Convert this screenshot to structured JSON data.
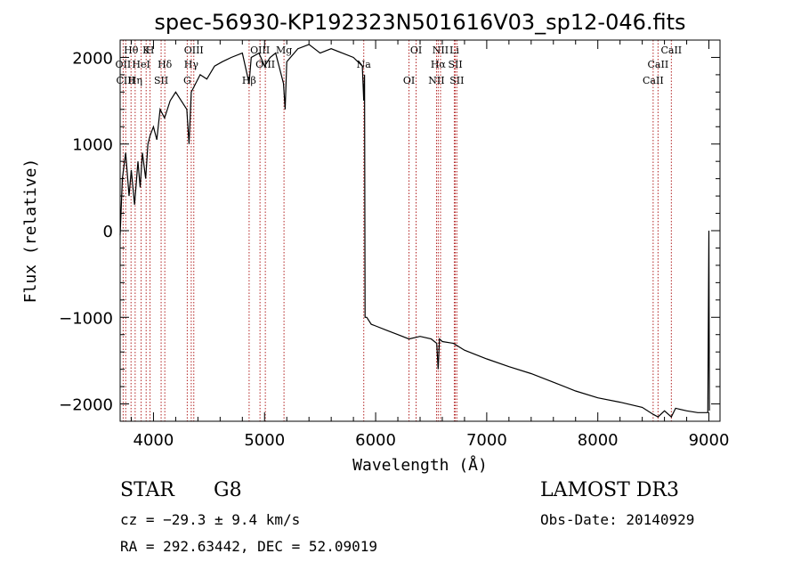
{
  "chart_data": {
    "type": "line",
    "title": "spec-56930-KP192323N501616V03_sp12-046.fits",
    "xlabel": "Wavelength (Å)",
    "ylabel": "Flux (relative)",
    "xlim": [
      3700,
      9100
    ],
    "ylim": [
      -2200,
      2200
    ],
    "xticks": [
      4000,
      5000,
      6000,
      7000,
      8000,
      9000
    ],
    "yticks": [
      -2000,
      -1000,
      0,
      1000,
      2000
    ],
    "grid": false,
    "series": [
      {
        "name": "flux",
        "x": [
          3700,
          3720,
          3750,
          3780,
          3800,
          3830,
          3860,
          3880,
          3900,
          3930,
          3950,
          3970,
          4000,
          4030,
          4060,
          4100,
          4150,
          4200,
          4250,
          4300,
          4320,
          4340,
          4380,
          4420,
          4480,
          4550,
          4620,
          4700,
          4800,
          4861,
          4880,
          4950,
          5000,
          5050,
          5100,
          5170,
          5185,
          5200,
          5300,
          5400,
          5500,
          5600,
          5700,
          5800,
          5880,
          5893,
          5900,
          5905,
          5920,
          5960,
          6000,
          6100,
          6200,
          6300,
          6400,
          6500,
          6550,
          6563,
          6575,
          6600,
          6700,
          6800,
          7000,
          7200,
          7400,
          7600,
          7800,
          8000,
          8200,
          8400,
          8498,
          8542,
          8600,
          8662,
          8700,
          8800,
          8900,
          8990,
          9000,
          9005
        ],
        "y": [
          -50,
          600,
          900,
          400,
          700,
          300,
          800,
          500,
          900,
          600,
          1000,
          1100,
          1200,
          1050,
          1400,
          1300,
          1500,
          1600,
          1500,
          1400,
          1000,
          1600,
          1700,
          1800,
          1750,
          1900,
          1950,
          2000,
          2050,
          1700,
          2000,
          2050,
          1900,
          2000,
          2050,
          1700,
          1400,
          1950,
          2100,
          2150,
          2050,
          2100,
          2050,
          2000,
          1900,
          1500,
          1800,
          -1000,
          -1000,
          -1080,
          -1100,
          -1150,
          -1200,
          -1250,
          -1220,
          -1250,
          -1300,
          -1600,
          -1250,
          -1280,
          -1300,
          -1380,
          -1480,
          -1570,
          -1650,
          -1750,
          -1850,
          -1930,
          -1980,
          -2040,
          -2120,
          -2150,
          -2080,
          -2150,
          -2050,
          -2080,
          -2100,
          -2100,
          0,
          -2080
        ]
      }
    ],
    "spectral_lines": [
      {
        "label": "Hθ",
        "x": 3798
      },
      {
        "label": "OII",
        "x": 3727
      },
      {
        "label": "CIII",
        "x": 3750
      },
      {
        "label": "K",
        "x": 3934
      },
      {
        "label": "HeI",
        "x": 3889
      },
      {
        "label": "Hη",
        "x": 3835
      },
      {
        "label": "H",
        "x": 3969
      },
      {
        "label": "Hδ",
        "x": 4102
      },
      {
        "label": "SII",
        "x": 4069
      },
      {
        "label": "OIII",
        "x": 4363
      },
      {
        "label": "Hγ",
        "x": 4340
      },
      {
        "label": "G",
        "x": 4304
      },
      {
        "label": "OIII",
        "x": 4959
      },
      {
        "label": "OIII",
        "x": 5007
      },
      {
        "label": "Hβ",
        "x": 4861
      },
      {
        "label": "Mg",
        "x": 5175
      },
      {
        "label": "Na",
        "x": 5893
      },
      {
        "label": "OI",
        "x": 6300
      },
      {
        "label": "OI",
        "x": 6364
      },
      {
        "label": "Hα",
        "x": 6563
      },
      {
        "label": "NII",
        "x": 6548
      },
      {
        "label": "NII",
        "x": 6584
      },
      {
        "label": "SII",
        "x": 6717
      },
      {
        "label": "SII",
        "x": 6731
      },
      {
        "label": "Li",
        "x": 6708
      },
      {
        "label": "CaII",
        "x": 8542
      },
      {
        "label": "CaII",
        "x": 8498
      },
      {
        "label": "CaII",
        "x": 8662
      }
    ],
    "colors": {
      "line": "#000000",
      "marker": "#b22222"
    }
  },
  "info": {
    "class": "STAR",
    "subclass": "G8",
    "survey": "LAMOST DR3",
    "cz": "cz = −29.3 ± 9.4 km/s",
    "obsdate": "Obs-Date: 20140929",
    "radec": "RA = 292.63442, DEC =  52.09019"
  }
}
